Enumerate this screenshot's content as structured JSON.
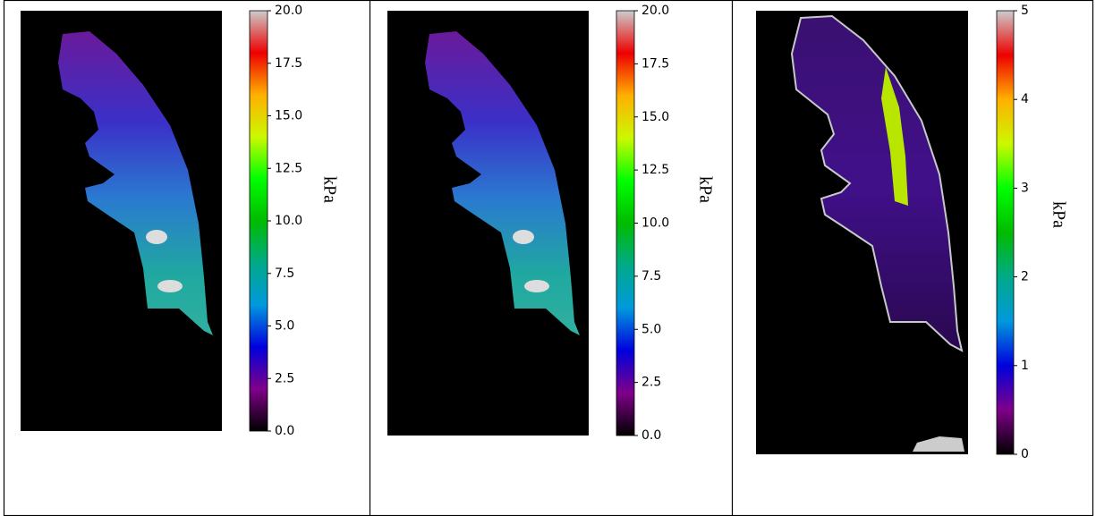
{
  "chart_data": [
    {
      "type": "colorbar",
      "label": "kPa",
      "ylim": [
        0,
        20
      ],
      "yticks": [
        {
          "value": 0,
          "label": "0.0"
        },
        2.5,
        {
          "value": 5,
          "label": "5.0"
        },
        7.5,
        {
          "value": 10,
          "label": "10.0"
        },
        12.5,
        {
          "value": 15,
          "label": "15.0"
        },
        17.5,
        {
          "value": 20,
          "label": "20.0"
        }
      ],
      "colormap": [
        "#000000",
        "#7f0089",
        "#0000dd",
        "#0099dd",
        "#00aa88",
        "#00bb00",
        "#00ff00",
        "#ccf800",
        "#ffb000",
        "#ee0000",
        "#cccccc"
      ]
    },
    {
      "type": "colorbar",
      "label": "kPa",
      "ylim": [
        0,
        20
      ],
      "yticks": [
        {
          "value": 0,
          "label": "0.0"
        },
        2.5,
        {
          "value": 5,
          "label": "5.0"
        },
        7.5,
        {
          "value": 10,
          "label": "10.0"
        },
        12.5,
        {
          "value": 15,
          "label": "15.0"
        },
        17.5,
        {
          "value": 20,
          "label": "20.0"
        }
      ],
      "colormap": [
        "#000000",
        "#7f0089",
        "#0000dd",
        "#0099dd",
        "#00aa88",
        "#00bb00",
        "#00ff00",
        "#ccf800",
        "#ffb000",
        "#ee0000",
        "#cccccc"
      ]
    },
    {
      "type": "colorbar",
      "label": "kPa",
      "ylim": [
        0,
        5
      ],
      "yticks": [
        0,
        1,
        2,
        3,
        4,
        5
      ],
      "colormap": [
        "#000000",
        "#7f0089",
        "#0000dd",
        "#0099dd",
        "#00aa88",
        "#00bb00",
        "#00ff00",
        "#ccf800",
        "#ffb000",
        "#ee0000",
        "#cccccc"
      ]
    }
  ]
}
